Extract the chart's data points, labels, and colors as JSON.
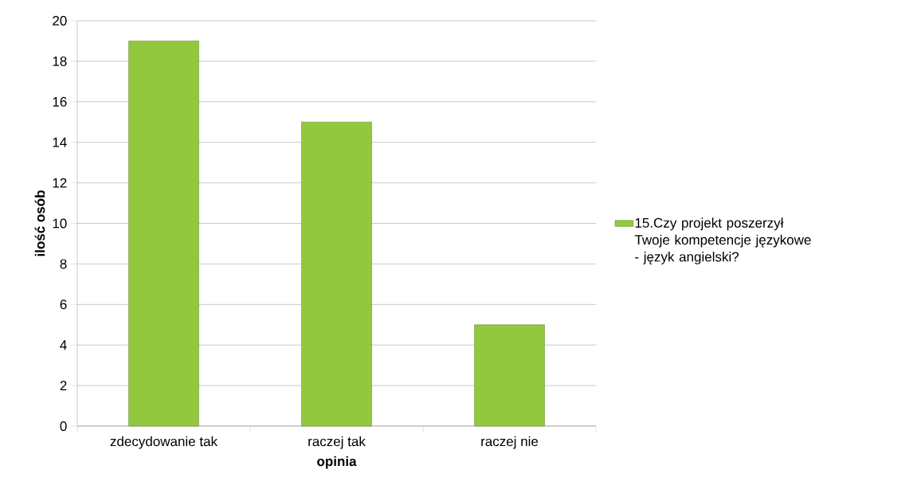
{
  "chart_data": {
    "type": "bar",
    "xlabel": "opinia",
    "ylabel": "ilość osób",
    "categories": [
      "zdecydowanie tak",
      "raczej tak",
      "raczej nie"
    ],
    "series": [
      {
        "name": "15.Czy projekt poszerzył Twoje kompetencje językowe - język angielski?",
        "color": "#92c83e",
        "values": [
          19,
          15,
          5
        ]
      }
    ],
    "ylim": [
      0,
      20
    ],
    "yticks": [
      0,
      2,
      4,
      6,
      8,
      10,
      12,
      14,
      16,
      18,
      20
    ],
    "grid": "y",
    "legend": "right"
  }
}
